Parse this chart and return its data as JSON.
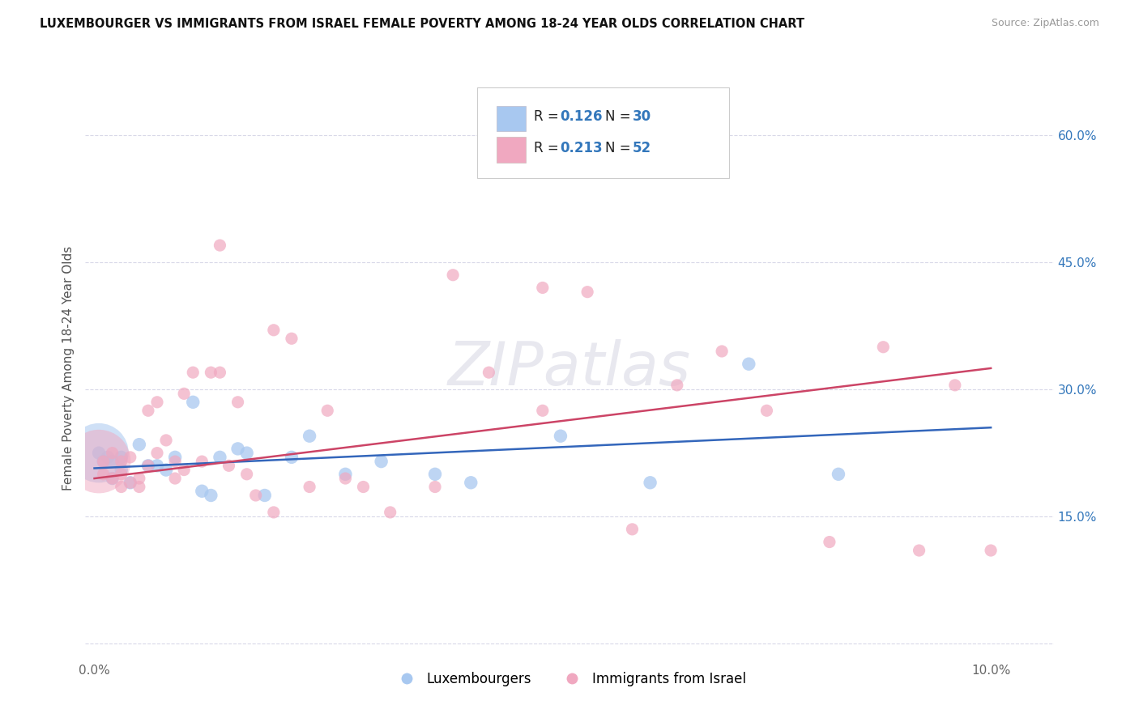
{
  "title": "LUXEMBOURGER VS IMMIGRANTS FROM ISRAEL FEMALE POVERTY AMONG 18-24 YEAR OLDS CORRELATION CHART",
  "source": "Source: ZipAtlas.com",
  "ylabel": "Female Poverty Among 18-24 Year Olds",
  "x_ticks": [
    0.0,
    0.02,
    0.04,
    0.06,
    0.08,
    0.1
  ],
  "x_tick_labels": [
    "0.0%",
    "",
    "",
    "",
    "",
    "10.0%"
  ],
  "y_ticks": [
    0.0,
    0.15,
    0.3,
    0.45,
    0.6
  ],
  "y_tick_labels": [
    "",
    "15.0%",
    "30.0%",
    "45.0%",
    "60.0%"
  ],
  "xlim": [
    -0.001,
    0.107
  ],
  "ylim": [
    -0.02,
    0.67
  ],
  "color_blue": "#a8c8f0",
  "color_pink": "#f0a8c0",
  "color_blue_text": "#3377bb",
  "color_dark_text": "#222222",
  "line_blue": "#3366bb",
  "line_pink": "#cc4466",
  "background": "#ffffff",
  "grid_color": "#d8d8e8",
  "blue_x": [
    0.0005,
    0.001,
    0.0015,
    0.002,
    0.002,
    0.003,
    0.003,
    0.004,
    0.005,
    0.006,
    0.007,
    0.008,
    0.009,
    0.011,
    0.012,
    0.013,
    0.014,
    0.016,
    0.017,
    0.019,
    0.022,
    0.024,
    0.028,
    0.032,
    0.038,
    0.042,
    0.052,
    0.062,
    0.073,
    0.083
  ],
  "blue_y": [
    0.225,
    0.215,
    0.22,
    0.215,
    0.195,
    0.22,
    0.205,
    0.19,
    0.235,
    0.21,
    0.21,
    0.205,
    0.22,
    0.285,
    0.18,
    0.175,
    0.22,
    0.23,
    0.225,
    0.175,
    0.22,
    0.245,
    0.2,
    0.215,
    0.2,
    0.19,
    0.245,
    0.19,
    0.33,
    0.2
  ],
  "pink_x": [
    0.001,
    0.001,
    0.002,
    0.002,
    0.003,
    0.003,
    0.003,
    0.004,
    0.004,
    0.005,
    0.005,
    0.006,
    0.006,
    0.007,
    0.007,
    0.008,
    0.009,
    0.009,
    0.01,
    0.01,
    0.011,
    0.012,
    0.013,
    0.014,
    0.015,
    0.016,
    0.017,
    0.018,
    0.02,
    0.022,
    0.024,
    0.026,
    0.028,
    0.03,
    0.033,
    0.038,
    0.04,
    0.044,
    0.05,
    0.055,
    0.06,
    0.065,
    0.07,
    0.075,
    0.082,
    0.088,
    0.092,
    0.096,
    0.1,
    0.014,
    0.02,
    0.05
  ],
  "pink_y": [
    0.215,
    0.2,
    0.225,
    0.195,
    0.215,
    0.2,
    0.185,
    0.22,
    0.19,
    0.195,
    0.185,
    0.275,
    0.21,
    0.285,
    0.225,
    0.24,
    0.215,
    0.195,
    0.295,
    0.205,
    0.32,
    0.215,
    0.32,
    0.32,
    0.21,
    0.285,
    0.2,
    0.175,
    0.155,
    0.36,
    0.185,
    0.275,
    0.195,
    0.185,
    0.155,
    0.185,
    0.435,
    0.32,
    0.275,
    0.415,
    0.135,
    0.305,
    0.345,
    0.275,
    0.12,
    0.35,
    0.11,
    0.305,
    0.11,
    0.47,
    0.37,
    0.42
  ],
  "blue_line_x0": 0.0,
  "blue_line_y0": 0.207,
  "blue_line_x1": 0.1,
  "blue_line_y1": 0.255,
  "pink_line_x0": 0.0,
  "pink_line_y0": 0.195,
  "pink_line_x1": 0.1,
  "pink_line_y1": 0.325
}
